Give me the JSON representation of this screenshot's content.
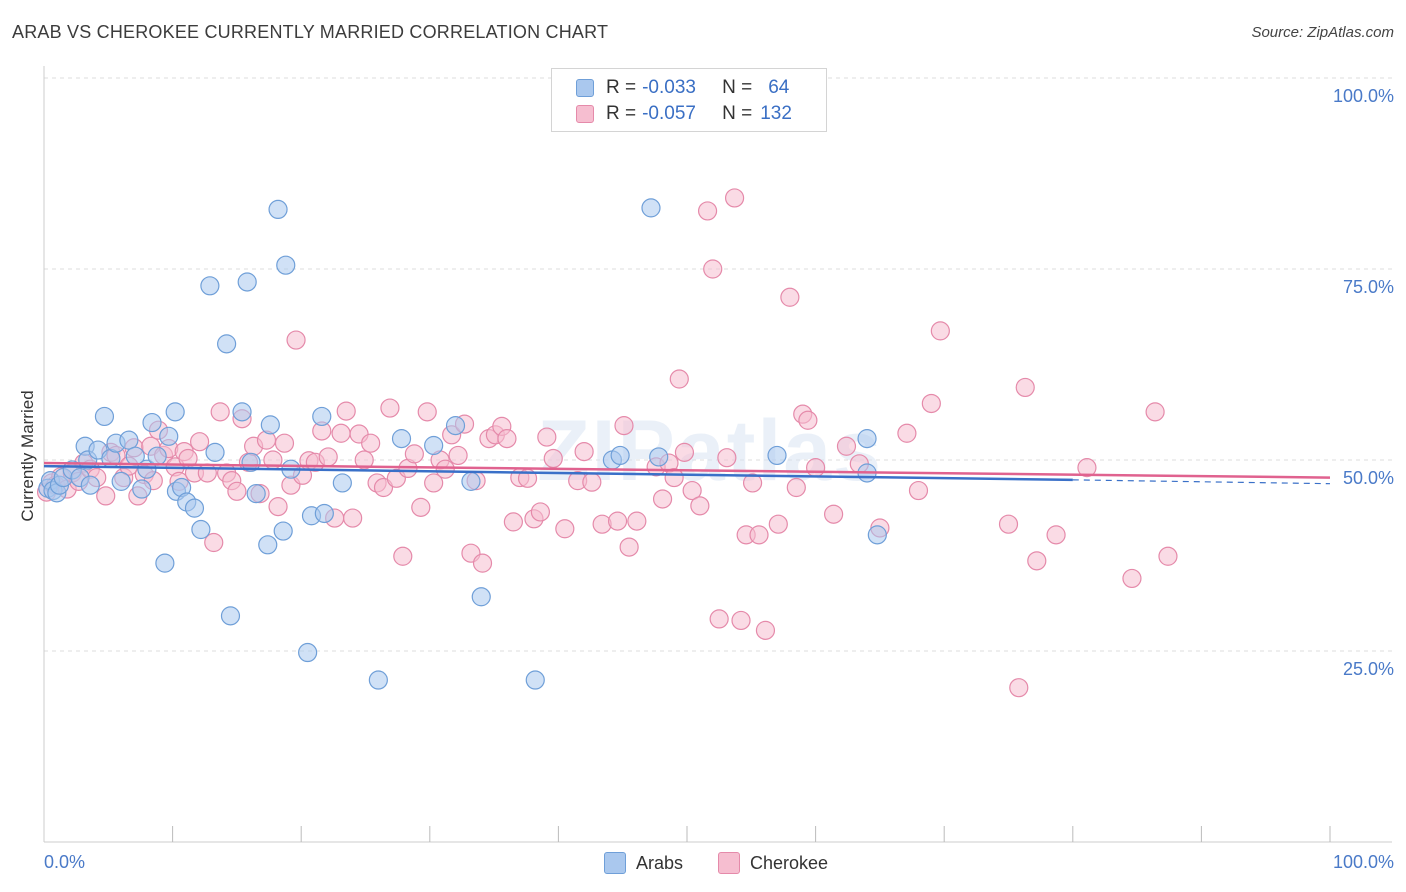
{
  "title": "ARAB VS CHEROKEE CURRENTLY MARRIED CORRELATION CHART",
  "source": "Source: ZipAtlas.com",
  "legend": {
    "r_label": "R =",
    "n_label": "N =",
    "rows": [
      {
        "r": "-0.033",
        "n": "64"
      },
      {
        "r": "-0.057",
        "n": "132"
      }
    ]
  },
  "bottom_legend": [
    "Arabs",
    "Cherokee"
  ],
  "watermark": "ZIPatlas",
  "colors": {
    "arabs_fill": "#aac8ee",
    "arabs_stroke": "#6f9fd8",
    "arabs_line": "#3a70c8",
    "cherokee_fill": "#f6bed0",
    "cherokee_stroke": "#e58aaa",
    "cherokee_line": "#e0628f",
    "tick_text": "#4a7ac8",
    "grid": "#dddddd"
  },
  "chart_data": {
    "type": "scatter",
    "title": "ARAB VS CHEROKEE CURRENTLY MARRIED CORRELATION CHART",
    "xlabel": "",
    "ylabel": "Currently Married",
    "xlim": [
      0,
      100
    ],
    "ylim": [
      0,
      100
    ],
    "x_tick_labels": [
      "0.0%",
      "100.0%"
    ],
    "y_ticks": [
      25,
      50,
      75,
      100
    ],
    "y_tick_labels": [
      "25.0%",
      "50.0%",
      "75.0%",
      "100.0%"
    ],
    "grid": true,
    "legend_placement": "top-center",
    "series": [
      {
        "name": "Arabs",
        "r": -0.033,
        "n": 64,
        "trend": {
          "x": [
            0,
            80
          ],
          "y": [
            49.2,
            47.4
          ],
          "dashed_to": [
            100,
            46.9
          ]
        },
        "points": [
          [
            0.3,
            46.3
          ],
          [
            0.5,
            47.3
          ],
          [
            0.7,
            46.0
          ],
          [
            1.0,
            45.7
          ],
          [
            1.2,
            46.7
          ],
          [
            1.5,
            47.7
          ],
          [
            2.2,
            48.7
          ],
          [
            2.8,
            47.7
          ],
          [
            3.2,
            51.8
          ],
          [
            3.4,
            50.0
          ],
          [
            3.6,
            46.7
          ],
          [
            4.2,
            51.3
          ],
          [
            4.7,
            55.7
          ],
          [
            5.2,
            50.2
          ],
          [
            5.6,
            52.2
          ],
          [
            6.0,
            47.2
          ],
          [
            6.6,
            52.6
          ],
          [
            7.1,
            50.5
          ],
          [
            7.6,
            46.2
          ],
          [
            8.0,
            48.8
          ],
          [
            8.4,
            54.9
          ],
          [
            8.8,
            50.5
          ],
          [
            9.4,
            36.5
          ],
          [
            9.7,
            53.1
          ],
          [
            10.2,
            56.3
          ],
          [
            10.3,
            45.9
          ],
          [
            10.7,
            46.4
          ],
          [
            11.1,
            44.5
          ],
          [
            11.7,
            43.7
          ],
          [
            12.2,
            40.9
          ],
          [
            12.9,
            72.8
          ],
          [
            13.3,
            51.0
          ],
          [
            14.2,
            65.2
          ],
          [
            14.5,
            29.6
          ],
          [
            15.4,
            56.3
          ],
          [
            15.8,
            73.3
          ],
          [
            16.1,
            49.7
          ],
          [
            16.5,
            45.6
          ],
          [
            17.4,
            38.9
          ],
          [
            17.6,
            54.6
          ],
          [
            18.2,
            82.8
          ],
          [
            18.6,
            40.7
          ],
          [
            18.8,
            75.5
          ],
          [
            19.2,
            48.8
          ],
          [
            20.5,
            24.8
          ],
          [
            20.8,
            42.7
          ],
          [
            21.6,
            55.7
          ],
          [
            21.8,
            43.0
          ],
          [
            23.2,
            47.0
          ],
          [
            26.0,
            21.2
          ],
          [
            27.8,
            52.8
          ],
          [
            30.3,
            51.9
          ],
          [
            32.0,
            54.5
          ],
          [
            33.2,
            47.2
          ],
          [
            34.0,
            32.1
          ],
          [
            38.2,
            21.2
          ],
          [
            44.2,
            50.0
          ],
          [
            44.8,
            50.6
          ],
          [
            47.2,
            83.0
          ],
          [
            47.8,
            50.4
          ],
          [
            64.8,
            40.2
          ],
          [
            64.0,
            52.8
          ],
          [
            64.0,
            48.3
          ],
          [
            57.0,
            50.6
          ]
        ]
      },
      {
        "name": "Cherokee",
        "r": -0.057,
        "n": 132,
        "trend": {
          "x": [
            0,
            100
          ],
          "y": [
            49.6,
            47.7
          ]
        },
        "points": [
          [
            0.2,
            45.8
          ],
          [
            0.6,
            47.0
          ],
          [
            0.9,
            46.7
          ],
          [
            1.3,
            47.8
          ],
          [
            1.8,
            46.2
          ],
          [
            2.2,
            48.3
          ],
          [
            2.7,
            47.2
          ],
          [
            3.1,
            49.6
          ],
          [
            3.6,
            48.8
          ],
          [
            4.1,
            47.7
          ],
          [
            4.8,
            45.3
          ],
          [
            5.2,
            51.0
          ],
          [
            5.6,
            50.6
          ],
          [
            6.2,
            47.7
          ],
          [
            6.6,
            49.2
          ],
          [
            7.0,
            51.6
          ],
          [
            7.3,
            45.3
          ],
          [
            7.8,
            48.1
          ],
          [
            8.3,
            51.8
          ],
          [
            8.5,
            47.3
          ],
          [
            8.9,
            53.9
          ],
          [
            9.3,
            50.6
          ],
          [
            9.7,
            51.5
          ],
          [
            10.2,
            49.1
          ],
          [
            10.5,
            47.2
          ],
          [
            10.9,
            51.1
          ],
          [
            11.2,
            50.2
          ],
          [
            11.7,
            48.3
          ],
          [
            12.1,
            52.4
          ],
          [
            12.7,
            48.3
          ],
          [
            13.2,
            39.2
          ],
          [
            13.7,
            56.3
          ],
          [
            14.2,
            48.3
          ],
          [
            14.6,
            47.3
          ],
          [
            15.0,
            45.9
          ],
          [
            15.4,
            55.4
          ],
          [
            15.9,
            49.7
          ],
          [
            16.3,
            51.8
          ],
          [
            16.8,
            45.6
          ],
          [
            17.3,
            52.6
          ],
          [
            17.8,
            50.0
          ],
          [
            18.2,
            43.9
          ],
          [
            18.7,
            52.2
          ],
          [
            19.2,
            46.7
          ],
          [
            19.6,
            65.7
          ],
          [
            20.1,
            48.0
          ],
          [
            20.6,
            49.9
          ],
          [
            21.1,
            49.7
          ],
          [
            21.6,
            53.8
          ],
          [
            22.1,
            50.4
          ],
          [
            22.6,
            42.4
          ],
          [
            23.1,
            53.5
          ],
          [
            23.5,
            56.4
          ],
          [
            24.0,
            42.4
          ],
          [
            24.5,
            53.4
          ],
          [
            24.9,
            50.0
          ],
          [
            25.4,
            52.2
          ],
          [
            25.9,
            47.0
          ],
          [
            26.4,
            46.4
          ],
          [
            26.9,
            56.8
          ],
          [
            27.4,
            47.6
          ],
          [
            27.9,
            37.4
          ],
          [
            28.3,
            48.9
          ],
          [
            28.8,
            50.8
          ],
          [
            29.3,
            43.8
          ],
          [
            29.8,
            56.3
          ],
          [
            30.3,
            47.0
          ],
          [
            30.8,
            50.0
          ],
          [
            31.2,
            48.8
          ],
          [
            31.7,
            53.3
          ],
          [
            32.2,
            50.6
          ],
          [
            32.7,
            54.7
          ],
          [
            33.2,
            37.8
          ],
          [
            33.6,
            47.3
          ],
          [
            34.1,
            36.5
          ],
          [
            34.6,
            52.8
          ],
          [
            35.1,
            53.3
          ],
          [
            35.6,
            54.4
          ],
          [
            36.0,
            52.8
          ],
          [
            36.5,
            41.9
          ],
          [
            37.0,
            47.7
          ],
          [
            37.6,
            47.6
          ],
          [
            38.1,
            42.3
          ],
          [
            38.6,
            43.2
          ],
          [
            39.1,
            53.0
          ],
          [
            39.6,
            50.2
          ],
          [
            40.5,
            41.0
          ],
          [
            41.5,
            47.3
          ],
          [
            42.0,
            51.1
          ],
          [
            42.6,
            47.1
          ],
          [
            43.4,
            41.6
          ],
          [
            44.6,
            42.0
          ],
          [
            45.1,
            54.5
          ],
          [
            45.5,
            38.6
          ],
          [
            46.1,
            42.0
          ],
          [
            47.6,
            49.1
          ],
          [
            48.1,
            44.9
          ],
          [
            48.6,
            49.6
          ],
          [
            49.0,
            47.7
          ],
          [
            49.4,
            60.6
          ],
          [
            49.8,
            51.0
          ],
          [
            50.4,
            46.0
          ],
          [
            51.0,
            44.0
          ],
          [
            51.6,
            82.6
          ],
          [
            52.0,
            75.0
          ],
          [
            52.5,
            29.2
          ],
          [
            53.1,
            50.3
          ],
          [
            53.7,
            84.3
          ],
          [
            54.2,
            29.0
          ],
          [
            54.6,
            40.2
          ],
          [
            55.1,
            47.0
          ],
          [
            55.6,
            40.2
          ],
          [
            56.1,
            27.7
          ],
          [
            57.1,
            41.6
          ],
          [
            58.0,
            71.3
          ],
          [
            58.5,
            46.4
          ],
          [
            59.0,
            56.0
          ],
          [
            59.4,
            55.2
          ],
          [
            60.0,
            49.0
          ],
          [
            61.4,
            42.9
          ],
          [
            62.4,
            51.8
          ],
          [
            63.4,
            49.5
          ],
          [
            65.0,
            41.1
          ],
          [
            67.1,
            53.5
          ],
          [
            68.0,
            46.0
          ],
          [
            69.0,
            57.4
          ],
          [
            69.7,
            66.9
          ],
          [
            75.0,
            41.6
          ],
          [
            75.8,
            20.2
          ],
          [
            76.3,
            59.5
          ],
          [
            77.2,
            36.8
          ],
          [
            78.7,
            40.2
          ],
          [
            81.1,
            49.0
          ],
          [
            84.6,
            34.5
          ],
          [
            86.4,
            56.3
          ],
          [
            87.4,
            37.4
          ]
        ]
      }
    ]
  }
}
